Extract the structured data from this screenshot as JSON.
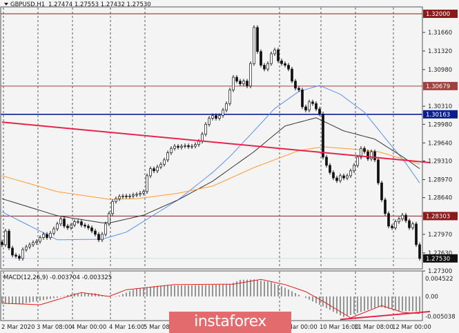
{
  "header": {
    "symbol": "GBPUSD.H1",
    "ohlc": "1.27474 1.27553 1.27432 1.27530"
  },
  "chart_data": {
    "type": "candlestick",
    "symbol": "GBPUSD",
    "timeframe": "H1",
    "ylim": [
      1.273,
      1.32
    ],
    "grid": "vertical dashed",
    "price_ticks": [
      "1.31660",
      "1.31320",
      "1.30980",
      "1.30310",
      "1.29980",
      "1.29640",
      "1.29310",
      "1.28970",
      "1.28640",
      "1.27970",
      "1.27630",
      "1.27300"
    ],
    "price_tick_values": [
      1.3166,
      1.3132,
      1.3098,
      1.3031,
      1.2998,
      1.2964,
      1.2931,
      1.2897,
      1.2864,
      1.2797,
      1.2763,
      1.273
    ],
    "time_labels": [
      {
        "label": "2 Mar 2020",
        "candle": 0
      },
      {
        "label": "3 Mar 08:00",
        "candle": 10
      },
      {
        "label": "4 Mar 00:00",
        "candle": 20
      },
      {
        "label": "4 Mar 16:00",
        "candle": 31
      },
      {
        "label": "5 Mar 08:00",
        "candle": 41
      },
      {
        "label": "10 Mar 00:00",
        "candle": 80
      },
      {
        "label": "10 Mar 16:00",
        "candle": 92
      },
      {
        "label": "11 Mar 08:00",
        "candle": 102
      },
      {
        "label": "12 Mar 00:00",
        "candle": 113
      }
    ],
    "close": [
      1.2778,
      1.2803,
      1.2772,
      1.2759,
      1.2757,
      1.2753,
      1.2769,
      1.2774,
      1.2778,
      1.2782,
      1.2784,
      1.2791,
      1.2797,
      1.2791,
      1.2799,
      1.2807,
      1.2816,
      1.2825,
      1.2812,
      1.2809,
      1.2814,
      1.282,
      1.282,
      1.2814,
      1.2812,
      1.2809,
      1.2803,
      1.2797,
      1.2787,
      1.2797,
      1.2816,
      1.2835,
      1.2857,
      1.2862,
      1.2866,
      1.2867,
      1.2866,
      1.2867,
      1.2869,
      1.287,
      1.2872,
      1.2875,
      1.2904,
      1.2917,
      1.2913,
      1.292,
      1.2925,
      1.2933,
      1.2946,
      1.2954,
      1.2958,
      1.2956,
      1.2958,
      1.2959,
      1.2957,
      1.2958,
      1.2961,
      1.2967,
      1.298,
      1.2998,
      1.3009,
      1.3014,
      1.3009,
      1.3014,
      1.3024,
      1.3036,
      1.3061,
      1.3084,
      1.3077,
      1.3072,
      1.3077,
      1.3068,
      1.3109,
      1.3175,
      1.3131,
      1.3106,
      1.3099,
      1.3109,
      1.3127,
      1.3134,
      1.3114,
      1.3109,
      1.3106,
      1.3099,
      1.3077,
      1.3064,
      1.3061,
      1.303,
      1.3024,
      1.3039,
      1.3036,
      1.3026,
      1.3017,
      1.2938,
      1.2923,
      1.291,
      1.29,
      1.2895,
      1.2904,
      1.29,
      1.2904,
      1.2913,
      1.2923,
      1.2938,
      1.2954,
      1.2948,
      1.2935,
      1.2948,
      1.2933,
      1.2891,
      1.286,
      1.2835,
      1.2812,
      1.2809,
      1.282,
      1.2825,
      1.2832,
      1.2822,
      1.2809,
      1.2816,
      1.2778,
      1.2753
    ],
    "moving_averages": [
      {
        "color": "#5b8ff0",
        "points": [
          [
            0,
            1.2838
          ],
          [
            16,
            1.2787
          ],
          [
            29,
            1.2788
          ],
          [
            36,
            1.2801
          ],
          [
            51,
            1.286
          ],
          [
            61,
            1.291
          ],
          [
            66,
            1.2939
          ],
          [
            73,
            1.2986
          ],
          [
            79,
            1.3027
          ],
          [
            86,
            1.3058
          ],
          [
            92,
            1.3069
          ],
          [
            98,
            1.3053
          ],
          [
            105,
            1.302
          ],
          [
            111,
            1.2973
          ],
          [
            117,
            1.2927
          ],
          [
            121,
            1.2891
          ]
        ]
      },
      {
        "color": "#333333",
        "points": [
          [
            0,
            1.2862
          ],
          [
            16,
            1.2831
          ],
          [
            29,
            1.2818
          ],
          [
            32,
            1.2819
          ],
          [
            41,
            1.2832
          ],
          [
            51,
            1.286
          ],
          [
            61,
            1.2894
          ],
          [
            73,
            1.2948
          ],
          [
            82,
            1.2995
          ],
          [
            91,
            1.301
          ],
          [
            99,
            1.2986
          ],
          [
            108,
            1.2971
          ],
          [
            116,
            1.2939
          ],
          [
            121,
            1.2917
          ]
        ]
      },
      {
        "color": "#ff9a2e",
        "points": [
          [
            0,
            1.2904
          ],
          [
            16,
            1.2875
          ],
          [
            31,
            1.2861
          ],
          [
            39,
            1.2862
          ],
          [
            51,
            1.2872
          ],
          [
            61,
            1.2885
          ],
          [
            73,
            1.2919
          ],
          [
            86,
            1.295
          ],
          [
            93,
            1.2957
          ],
          [
            103,
            1.2952
          ],
          [
            109,
            1.2948
          ],
          [
            116,
            1.2935
          ],
          [
            121,
            1.2925
          ]
        ]
      }
    ],
    "levels": [
      {
        "price": 1.32,
        "label": "1.32000",
        "color": "#8b1a1a"
      },
      {
        "price": 1.30679,
        "label": "1.30679",
        "color": "#a0413f"
      },
      {
        "price": 1.30163,
        "label": "1.30163",
        "color": "#0a1f8f"
      },
      {
        "price": 1.28303,
        "label": "1.28303",
        "color": "#8b1a1a"
      }
    ],
    "trendline": {
      "color": "#e8234a",
      "from": [
        0,
        1.3002
      ],
      "to": [
        124,
        1.2928
      ]
    },
    "current_price": {
      "price": 1.2753,
      "label": "1.27530"
    },
    "macd": {
      "title": "MACD(12,26,9) -0.003704 -0.003325",
      "ylim": [
        -0.005038,
        0.004522
      ],
      "tick_labels": [
        "0.004522",
        "0.00",
        "-0.005038"
      ],
      "tick_values": [
        0.004522,
        0,
        -0.005038
      ],
      "histogram_points": [
        [
          0,
          -0.0018
        ],
        [
          5,
          -0.002
        ],
        [
          10,
          -0.0012
        ],
        [
          16,
          -0.0003
        ],
        [
          21,
          0.0008
        ],
        [
          27,
          0.0008
        ],
        [
          30,
          0.0001
        ],
        [
          33,
          -0.0001
        ],
        [
          39,
          0.002
        ],
        [
          45,
          0.0027
        ],
        [
          60,
          0.0029
        ],
        [
          66,
          0.0031
        ],
        [
          69,
          0.0042
        ],
        [
          73,
          0.0043
        ],
        [
          78,
          0.0036
        ],
        [
          82,
          0.0022
        ],
        [
          87,
          0.0
        ],
        [
          93,
          -0.0025
        ],
        [
          99,
          -0.0052
        ],
        [
          109,
          -0.0026
        ],
        [
          115,
          -0.0036
        ],
        [
          121,
          -0.0038
        ]
      ],
      "signal_points": [
        [
          0,
          -0.0017
        ],
        [
          11,
          -0.0021
        ],
        [
          23,
          0.001
        ],
        [
          31,
          0.0
        ],
        [
          36,
          0.0017
        ],
        [
          50,
          0.003
        ],
        [
          67,
          0.0031
        ],
        [
          75,
          0.0043
        ],
        [
          82,
          0.003
        ],
        [
          88,
          0.0012
        ],
        [
          93,
          -0.0012
        ],
        [
          101,
          -0.0054
        ],
        [
          110,
          -0.0023
        ],
        [
          116,
          -0.004
        ],
        [
          121,
          -0.0043
        ]
      ],
      "trendline": {
        "color": "#e8234a",
        "from": [
          98,
          -0.0058
        ],
        "to": [
          124,
          -0.0038
        ]
      }
    }
  },
  "watermark": "instaforex"
}
